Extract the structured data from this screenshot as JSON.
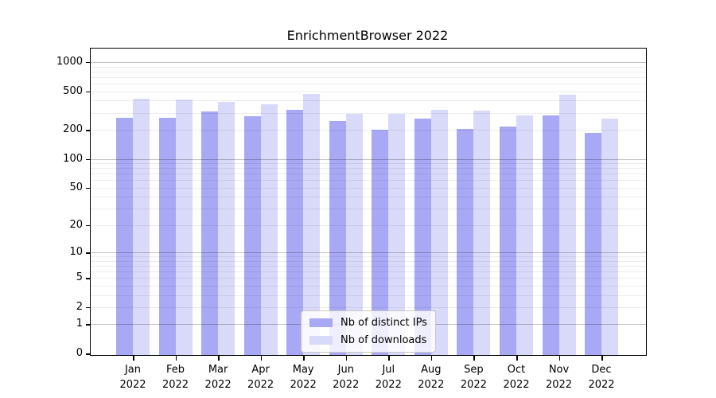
{
  "chart_data": {
    "type": "bar",
    "title": "EnrichmentBrowser 2022",
    "categories": [
      "Jan 2022",
      "Feb 2022",
      "Mar 2022",
      "Apr 2022",
      "May 2022",
      "Jun 2022",
      "Jul 2022",
      "Aug 2022",
      "Sep 2022",
      "Oct 2022",
      "Nov 2022",
      "Dec 2022"
    ],
    "series": [
      {
        "name": "Nb of distinct IPs",
        "color": "#a8a8f5",
        "values": [
          265,
          267,
          308,
          276,
          320,
          247,
          201,
          259,
          204,
          217,
          281,
          184
        ]
      },
      {
        "name": "Nb of downloads",
        "color": "#d9d9fa",
        "values": [
          421,
          412,
          388,
          366,
          470,
          295,
          294,
          323,
          313,
          282,
          465,
          259
        ]
      }
    ],
    "yticks": [
      0,
      1,
      2,
      5,
      10,
      20,
      50,
      100,
      200,
      500,
      1000
    ],
    "y_scale": "log1p",
    "ylim": [
      0,
      1380
    ],
    "xlabel": "",
    "ylabel": "",
    "grid": "horizontal major+minor",
    "legend_position": "lower center"
  }
}
